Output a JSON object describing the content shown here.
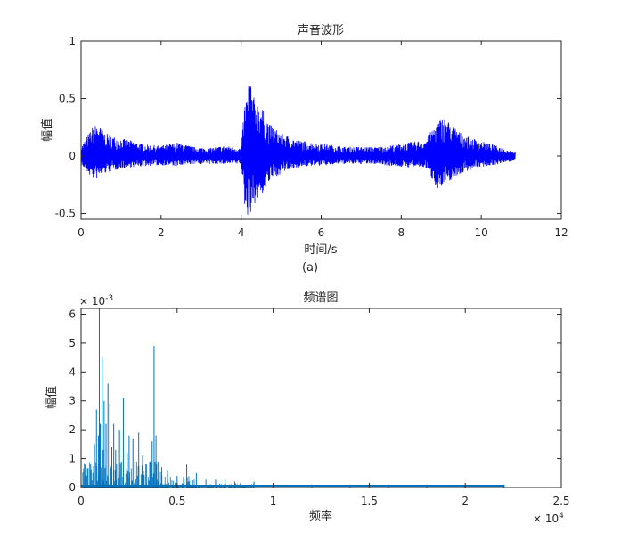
{
  "colors": {
    "waveform": "#0000ff",
    "spectrum": "#0072bd",
    "axis": "#262626"
  },
  "chart_data": [
    {
      "type": "line",
      "title": "声音波形",
      "xlabel": "时间/s",
      "ylabel": "幅值",
      "xlim": [
        0,
        12
      ],
      "ylim": [
        -0.55,
        1
      ],
      "xticks": [
        "0",
        "2",
        "4",
        "6",
        "8",
        "10",
        "12"
      ],
      "yticks": [
        "1",
        "0.5",
        "0",
        "-0.5"
      ],
      "x_range_data": [
        0,
        10.85
      ],
      "series": [
        {
          "time": [
            0,
            0.3,
            0.4,
            0.6,
            0.9,
            1.2,
            1.6,
            2.0,
            2.4,
            2.8,
            3.2,
            3.6,
            4.0,
            4.1,
            4.15,
            4.2,
            4.3,
            4.5,
            4.7,
            5.0,
            5.4,
            5.8,
            6.2,
            6.6,
            7.0,
            7.4,
            7.8,
            8.2,
            8.6,
            8.9,
            9.05,
            9.2,
            9.5,
            9.9,
            10.3,
            10.6,
            10.85
          ],
          "envelope_upper": [
            0.08,
            0.26,
            0.28,
            0.2,
            0.16,
            0.14,
            0.1,
            0.09,
            0.12,
            0.08,
            0.07,
            0.09,
            0.07,
            0.5,
            0.52,
            0.75,
            0.52,
            0.44,
            0.28,
            0.2,
            0.14,
            0.12,
            0.1,
            0.08,
            0.08,
            0.08,
            0.1,
            0.12,
            0.14,
            0.3,
            0.34,
            0.3,
            0.2,
            0.14,
            0.1,
            0.06,
            0.04
          ],
          "envelope_lower": [
            -0.08,
            -0.2,
            -0.2,
            -0.15,
            -0.12,
            -0.1,
            -0.09,
            -0.08,
            -0.09,
            -0.07,
            -0.07,
            -0.07,
            -0.07,
            -0.48,
            -0.52,
            -0.52,
            -0.44,
            -0.35,
            -0.23,
            -0.15,
            -0.1,
            -0.09,
            -0.08,
            -0.07,
            -0.07,
            -0.07,
            -0.09,
            -0.1,
            -0.1,
            -0.28,
            -0.28,
            -0.22,
            -0.15,
            -0.1,
            -0.08,
            -0.06,
            -0.04
          ]
        }
      ]
    },
    {
      "type": "line",
      "title": "频谱图",
      "xlabel": "频率",
      "ylabel": "幅值",
      "xlim": [
        0,
        25000
      ],
      "ylim": [
        0,
        0.0062
      ],
      "xticks": [
        "0",
        "0.5",
        "1",
        "1.5",
        "2",
        "2.5"
      ],
      "yticks": [
        "6",
        "5",
        "4",
        "3",
        "2",
        "1",
        "0"
      ],
      "y_exponent": "× 10^-3",
      "x_exponent": "× 10^4",
      "x_range_data": [
        0,
        22050
      ],
      "series": [
        {
          "frequency": [
            200,
            500,
            700,
            800,
            900,
            950,
            1000,
            1100,
            1150,
            1200,
            1300,
            1400,
            1500,
            1600,
            1700,
            1800,
            2000,
            2100,
            2200,
            2400,
            2500,
            2700,
            2800,
            3000,
            3200,
            3400,
            3600,
            3700,
            3800,
            3900,
            4000,
            4200,
            4500,
            5000,
            5500,
            6000,
            6500,
            7000,
            7500,
            8000,
            9000,
            10000,
            12000,
            14000,
            16000,
            18000,
            20000,
            22000
          ],
          "amplitude": [
            0.0004,
            0.0008,
            0.0015,
            0.0027,
            0.0018,
            0.0062,
            0.0022,
            0.0045,
            0.0013,
            0.003,
            0.0022,
            0.0036,
            0.0029,
            0.0014,
            0.0022,
            0.0013,
            0.002,
            0.0009,
            0.0031,
            0.0012,
            0.0018,
            0.0017,
            0.0009,
            0.0019,
            0.0011,
            0.0008,
            0.0009,
            0.0016,
            0.0049,
            0.0018,
            0.0009,
            0.0007,
            0.0006,
            0.0004,
            0.0008,
            0.0005,
            0.0003,
            0.0003,
            0.0003,
            0.0002,
            0.0002,
            0.0001,
            0.0001,
            0.0001,
            0.0001,
            0.0001,
            0.0001,
            0.0001
          ]
        }
      ]
    }
  ],
  "caption": "(a)"
}
